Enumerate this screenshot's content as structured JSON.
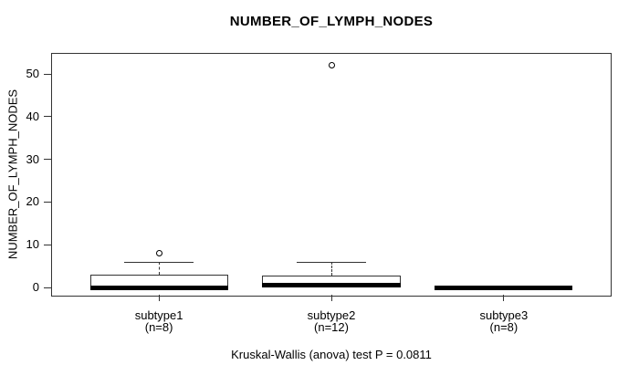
{
  "colors": {
    "line": "#333333",
    "thick_line": "#000000",
    "box_fill": "#ffffff",
    "background": "#ffffff",
    "text": "#000000"
  },
  "chart_data": {
    "type": "boxplot",
    "title": "NUMBER_OF_LYMPH_NODES",
    "ylabel": "NUMBER_OF_LYMPH_NODES",
    "xlabel": "",
    "footer": "Kruskal-Wallis (anova) test P = 0.0811",
    "yticks": [
      0,
      10,
      20,
      30,
      40,
      50
    ],
    "ylim": [
      -1.9,
      54.7
    ],
    "grid": false,
    "legend": "none",
    "groups": [
      {
        "label": "subtype1",
        "sublabel": "(n=8)",
        "n": 8,
        "whisker_low": 0,
        "q1": 0,
        "median": 0,
        "q3": 3,
        "whisker_high": 6,
        "outliers": [
          8
        ]
      },
      {
        "label": "subtype2",
        "sublabel": "(n=12)",
        "n": 12,
        "whisker_low": 0,
        "q1": 0,
        "median": 0.5,
        "q3": 2.75,
        "whisker_high": 6,
        "outliers": [
          52
        ]
      },
      {
        "label": "subtype3",
        "sublabel": "(n=8)",
        "n": 8,
        "whisker_low": 0,
        "q1": 0,
        "median": 0,
        "q3": 0,
        "whisker_high": 0,
        "outliers": []
      }
    ]
  }
}
